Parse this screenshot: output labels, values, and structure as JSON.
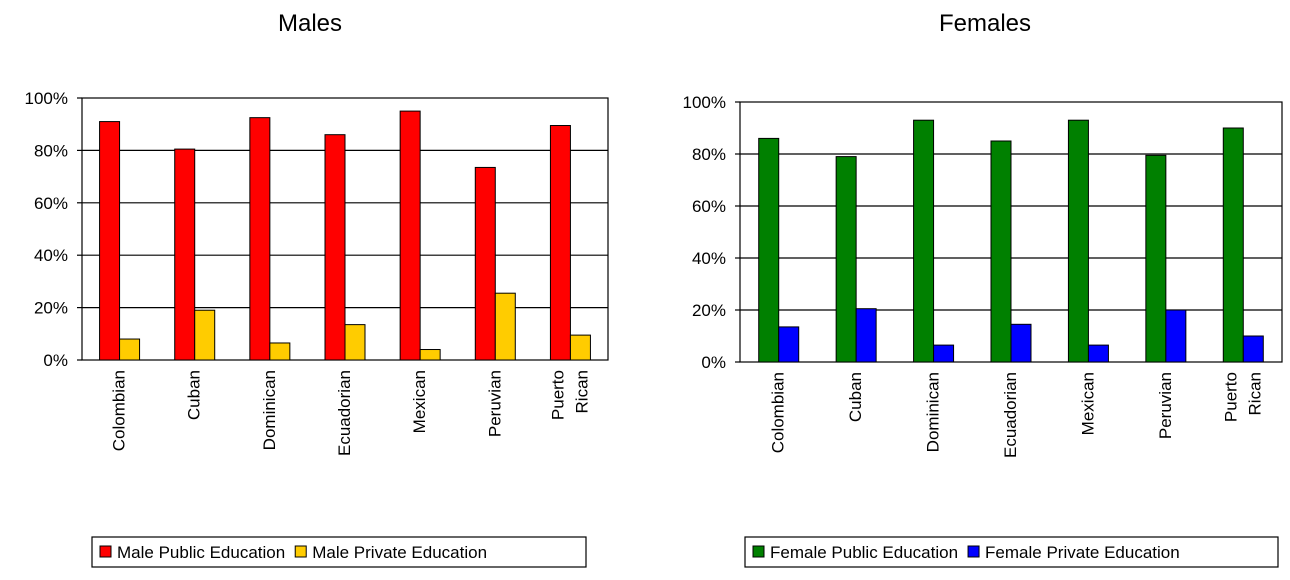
{
  "chart_data": [
    {
      "type": "bar",
      "title": "Males",
      "categories": [
        [
          "Colombian"
        ],
        [
          "Cuban"
        ],
        [
          "Dominican"
        ],
        [
          "Ecuadorian"
        ],
        [
          "Mexican"
        ],
        [
          "Peruvian"
        ],
        [
          "Puerto",
          "Rican"
        ]
      ],
      "series": [
        {
          "name": "Male Public Education",
          "color": "#ff0000",
          "values": [
            91,
            80.5,
            92.5,
            86,
            95,
            73.5,
            89.5
          ]
        },
        {
          "name": "Male Private Education",
          "color": "#ffcc00",
          "values": [
            8,
            19,
            6.5,
            13.5,
            4,
            25.5,
            9.5
          ]
        }
      ],
      "y_ticks": [
        "0%",
        "20%",
        "40%",
        "60%",
        "80%",
        "100%"
      ],
      "ylim": [
        0,
        100
      ],
      "grid": true,
      "legend_position": "bottom"
    },
    {
      "type": "bar",
      "title": "Females",
      "categories": [
        [
          "Colombian"
        ],
        [
          "Cuban"
        ],
        [
          "Dominican"
        ],
        [
          "Ecuadorian"
        ],
        [
          "Mexican"
        ],
        [
          "Peruvian"
        ],
        [
          "Puerto",
          "Rican"
        ]
      ],
      "series": [
        {
          "name": "Female Public Education",
          "color": "#008000",
          "values": [
            86,
            79,
            93,
            85,
            93,
            79.5,
            90
          ]
        },
        {
          "name": "Female Private Education",
          "color": "#0000ff",
          "values": [
            13.5,
            20.5,
            6.5,
            14.5,
            6.5,
            20,
            10
          ]
        }
      ],
      "y_ticks": [
        "0%",
        "20%",
        "40%",
        "60%",
        "80%",
        "100%"
      ],
      "ylim": [
        0,
        100
      ],
      "grid": true,
      "legend_position": "bottom"
    }
  ]
}
